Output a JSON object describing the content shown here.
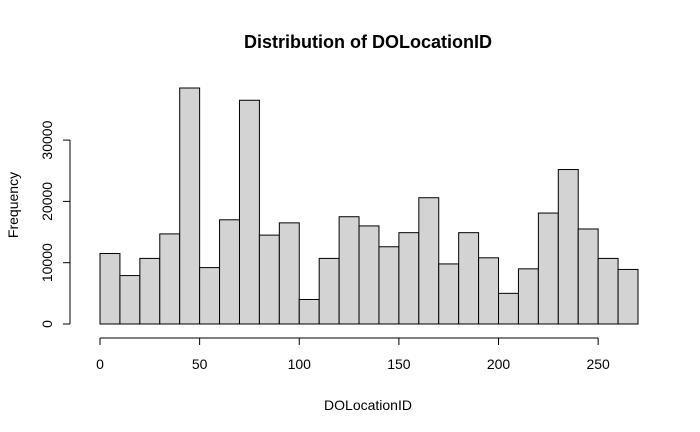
{
  "chart_data": {
    "type": "bar",
    "title": "Distribution of DOLocationID",
    "xlabel": "DOLocationID",
    "ylabel": "Frequency",
    "bin_edges": [
      0,
      10,
      20,
      30,
      40,
      50,
      60,
      70,
      80,
      90,
      100,
      110,
      120,
      130,
      140,
      150,
      160,
      170,
      180,
      190,
      200,
      210,
      220,
      230,
      240,
      250,
      260,
      270
    ],
    "values": [
      11500,
      7900,
      10700,
      14700,
      38500,
      9200,
      17000,
      36500,
      14500,
      16500,
      4000,
      10700,
      17500,
      16000,
      12600,
      14900,
      20600,
      9800,
      14900,
      10800,
      5000,
      9000,
      18100,
      25200,
      15500,
      10700,
      8900
    ],
    "xlim": [
      0,
      270
    ],
    "ylim": [
      0,
      38500
    ],
    "x_ticks": [
      0,
      50,
      100,
      150,
      200,
      250
    ],
    "y_ticks": [
      0,
      10000,
      20000,
      30000
    ],
    "grid": false,
    "fill_color": "#d3d3d3",
    "edge_color": "#000000"
  }
}
